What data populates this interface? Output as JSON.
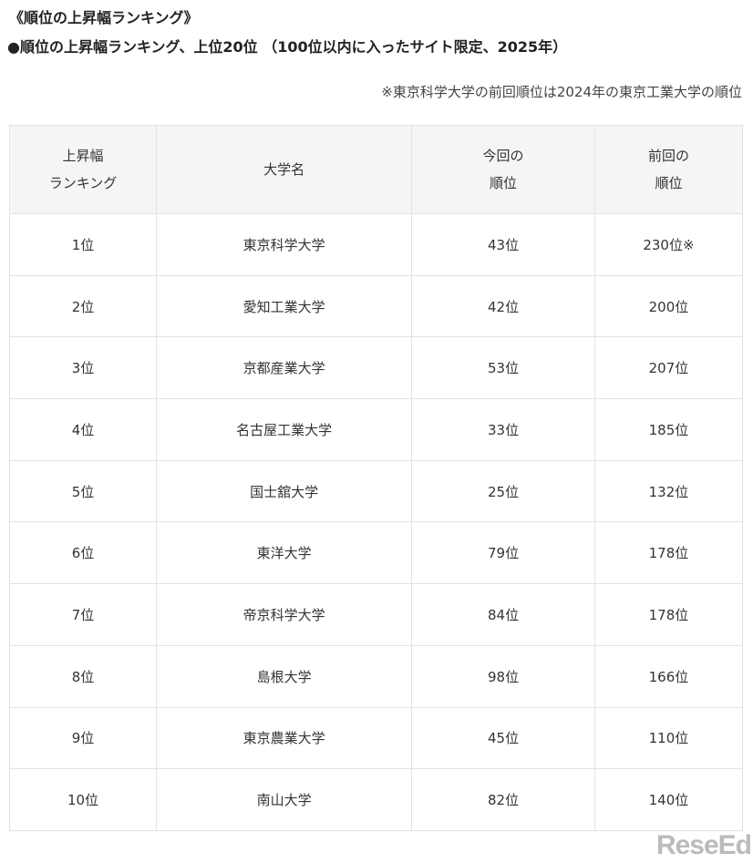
{
  "title": "《順位の上昇幅ランキング》",
  "subtitle": "●順位の上昇幅ランキング、上位20位 （100位以内に入ったサイト限定、2025年）",
  "note": "※東京科学大学の前回順位は2024年の東京工業大学の順位",
  "headers": [
    [
      "上昇幅",
      "ランキング"
    ],
    [
      "大学名"
    ],
    [
      "今回の",
      "順位"
    ],
    [
      "前回の",
      "順位"
    ]
  ],
  "rows": [
    [
      "1位",
      "東京科学大学",
      "43位",
      "230位※"
    ],
    [
      "2位",
      "愛知工業大学",
      "42位",
      "200位"
    ],
    [
      "3位",
      "京都産業大学",
      "53位",
      "207位"
    ],
    [
      "4位",
      "名古屋工業大学",
      "33位",
      "185位"
    ],
    [
      "5位",
      "国士舘大学",
      "25位",
      "132位"
    ],
    [
      "6位",
      "東洋大学",
      "79位",
      "178位"
    ],
    [
      "7位",
      "帝京科学大学",
      "84位",
      "178位"
    ],
    [
      "8位",
      "島根大学",
      "98位",
      "166位"
    ],
    [
      "9位",
      "東京農業大学",
      "45位",
      "110位"
    ],
    [
      "10位",
      "南山大学",
      "82位",
      "140位"
    ]
  ],
  "logo": "ReseEd"
}
